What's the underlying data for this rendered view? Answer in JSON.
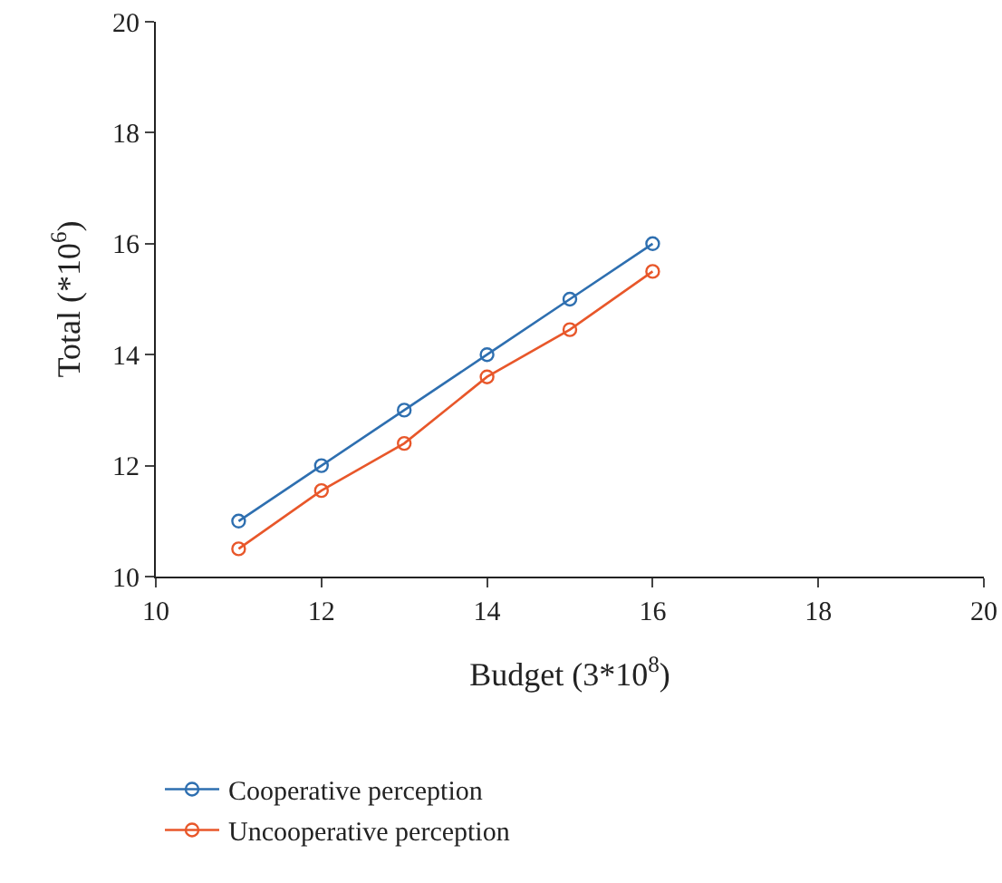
{
  "chart_data": {
    "type": "line",
    "xlabel": "Budget (3*10$^{8}$)",
    "ylabel": "Total (*10$^{6}$)",
    "x": [
      11,
      12,
      13,
      14,
      15,
      16
    ],
    "series": [
      {
        "name": "Cooperative perception",
        "color": "#2e6fb0",
        "values": [
          11,
          12,
          13,
          14,
          15,
          16
        ]
      },
      {
        "name": "Uncooperative perception",
        "color": "#e8572a",
        "values": [
          10.5,
          11.55,
          12.4,
          13.6,
          14.45,
          15.5
        ]
      }
    ],
    "xlim": [
      10,
      20
    ],
    "xticks": [
      10,
      12,
      14,
      16,
      18,
      20
    ],
    "ylim": [
      10,
      20
    ],
    "yticks": [
      10,
      12,
      14,
      16,
      18,
      20
    ],
    "grid": false,
    "legend": "bottom left",
    "marker": "circle",
    "line_style": "solid"
  }
}
